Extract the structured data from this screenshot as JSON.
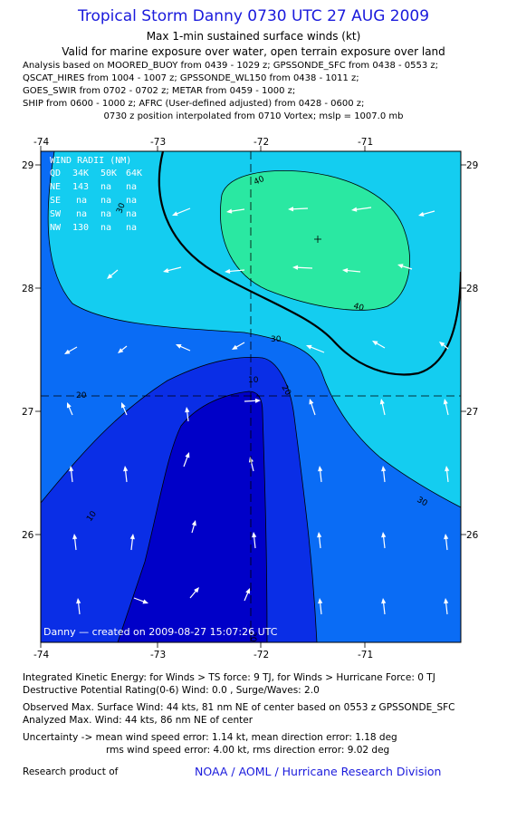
{
  "header": {
    "title": "Tropical Storm Danny 0730 UTC 27 AUG 2009",
    "subtitle1": "Max 1-min sustained surface winds (kt)",
    "subtitle2": "Valid for marine exposure over water, open terrain exposure over land",
    "analysis_lines": [
      "Analysis based on  MOORED_BUOY from 0439 - 1029 z;  GPSSONDE_SFC from 0438 - 0553 z;",
      "QSCAT_HIRES from 1004 - 1007 z;  GPSSONDE_WL150 from 0438 - 1011 z;",
      "GOES_SWIR from 0702 - 0702 z;  METAR from 0459 - 1000 z;",
      "SHIP from 0600 - 1000 z;  AFRC (User-defined adjusted) from 0428 - 0600 z;"
    ],
    "position_line": "0730 z position interpolated from 0710 Vortex; mslp = 1007.0 mb"
  },
  "map": {
    "lon_ticks": [
      "-74",
      "-73",
      "-72",
      "-71"
    ],
    "lat_ticks": [
      "29",
      "28",
      "27",
      "26"
    ],
    "center_lon": -72.0,
    "center_lat": 27.13,
    "max_wind_marker": {
      "lon": -71.45,
      "lat": 28.42
    },
    "contour_labels": [
      "10",
      "10",
      "20",
      "20",
      "30",
      "30",
      "30",
      "40",
      "40",
      "20"
    ],
    "wind_radii": {
      "title": "WIND RADII (NM)",
      "header": [
        "QD",
        "34K",
        "50K",
        "64K"
      ],
      "rows": [
        [
          "NE",
          "143",
          "na",
          "na"
        ],
        [
          "SE",
          "na",
          "na",
          "na"
        ],
        [
          "SW",
          "na",
          "na",
          "na"
        ],
        [
          "NW",
          "130",
          "na",
          "na"
        ]
      ]
    },
    "credit": "Danny — created on 2009-08-27 15:07:26 UTC",
    "colors": {
      "band_0_10": "#0000c8",
      "band_10_20": "#0a2ee6",
      "band_20_30": "#0a6cf5",
      "band_30_40": "#14cdf0",
      "band_40_50": "#2ae8a2",
      "arrow": "#ffffff"
    }
  },
  "footer": {
    "ike_line": "Integrated Kinetic Energy:  for Winds > TS force: 9 TJ,  for Winds > Hurricane Force: 0 TJ",
    "dpr_line": "Destructive Potential Rating(0-6)   Wind: 0.0 , Surge/Waves: 2.0",
    "obs_max_line": "Observed Max. Surface Wind: 44 kts, 81 nm NE of center based on 0553 z GPSSONDE_SFC",
    "analyzed_max_line": "Analyzed Max. Wind: 44 kts, 86 nm NE of center",
    "uncertainty_line1": "Uncertainty -> mean wind speed error: 1.14 kt,   mean direction error: 1.18 deg",
    "uncertainty_line2": "rms wind speed error: 4.00 kt,   rms direction error: 9.02 deg",
    "research_label": "Research product of",
    "research_org": "NOAA / AOML / Hurricane Research Division"
  }
}
